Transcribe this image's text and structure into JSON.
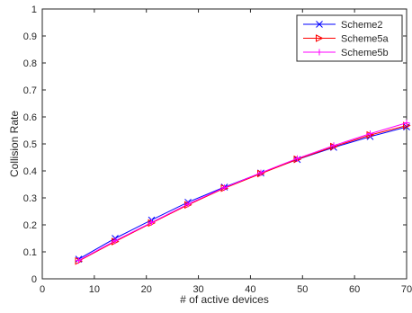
{
  "chart_data": {
    "type": "line",
    "title": "",
    "xlabel": "# of active devices",
    "ylabel": "Collision Rate",
    "xlim": [
      0,
      70
    ],
    "ylim": [
      0,
      1
    ],
    "xticks": [
      0,
      10,
      20,
      30,
      40,
      50,
      60,
      70
    ],
    "yticks": [
      0,
      0.1,
      0.2,
      0.3,
      0.4,
      0.5,
      0.6,
      0.7,
      0.8,
      0.9,
      1
    ],
    "grid": false,
    "legend_position": "top-right",
    "x": [
      7,
      14,
      21,
      28,
      35,
      42,
      49,
      56,
      63,
      70
    ],
    "series": [
      {
        "name": "Scheme2",
        "color": "#0000ff",
        "marker": "x",
        "values": [
          0.073,
          0.15,
          0.218,
          0.284,
          0.34,
          0.392,
          0.442,
          0.487,
          0.527,
          0.563
        ]
      },
      {
        "name": "Scheme5a",
        "color": "#ff0000",
        "marker": "triangle-right",
        "values": [
          0.066,
          0.138,
          0.207,
          0.274,
          0.336,
          0.39,
          0.443,
          0.49,
          0.533,
          0.568
        ]
      },
      {
        "name": "Scheme5b",
        "color": "#ff00ff",
        "marker": "plus",
        "values": [
          0.068,
          0.141,
          0.209,
          0.277,
          0.338,
          0.393,
          0.446,
          0.494,
          0.538,
          0.578
        ]
      }
    ]
  }
}
